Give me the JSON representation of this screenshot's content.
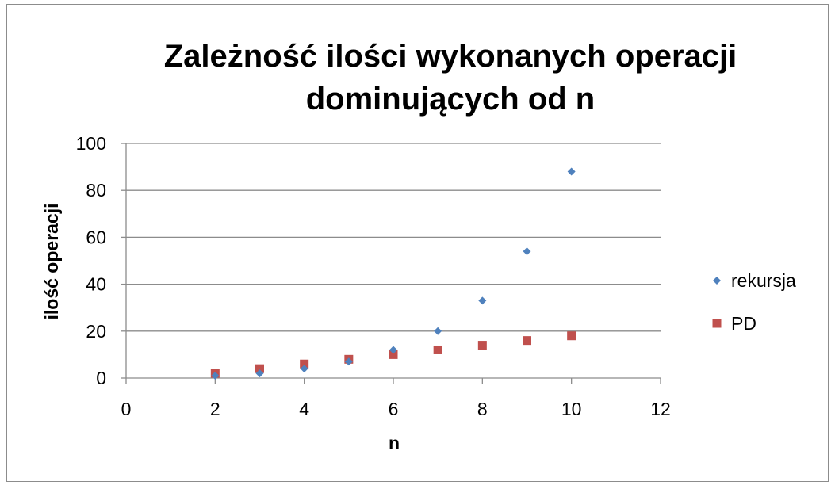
{
  "chart_data": {
    "type": "scatter",
    "title_lines": [
      "Zależność ilości wykonanych operacji",
      "dominujących od n"
    ],
    "xlabel": "n",
    "ylabel": "ilość operacji",
    "xlim": [
      0,
      12
    ],
    "ylim": [
      0,
      100
    ],
    "x_ticks": [
      0,
      2,
      4,
      6,
      8,
      10,
      12
    ],
    "y_ticks": [
      0,
      20,
      40,
      60,
      80,
      100
    ],
    "grid": "horizontal",
    "legend_position": "right",
    "series": [
      {
        "name": "rekursja",
        "marker": "diamond",
        "color": "#4f81bd",
        "points": [
          [
            2,
            1
          ],
          [
            3,
            2
          ],
          [
            4,
            4
          ],
          [
            5,
            7
          ],
          [
            6,
            12
          ],
          [
            7,
            20
          ],
          [
            8,
            33
          ],
          [
            9,
            54
          ],
          [
            10,
            88
          ]
        ]
      },
      {
        "name": "PD",
        "marker": "square",
        "color": "#c0504d",
        "points": [
          [
            2,
            2
          ],
          [
            3,
            4
          ],
          [
            4,
            6
          ],
          [
            5,
            8
          ],
          [
            6,
            10
          ],
          [
            7,
            12
          ],
          [
            8,
            14
          ],
          [
            9,
            16
          ],
          [
            10,
            18
          ]
        ]
      }
    ]
  }
}
